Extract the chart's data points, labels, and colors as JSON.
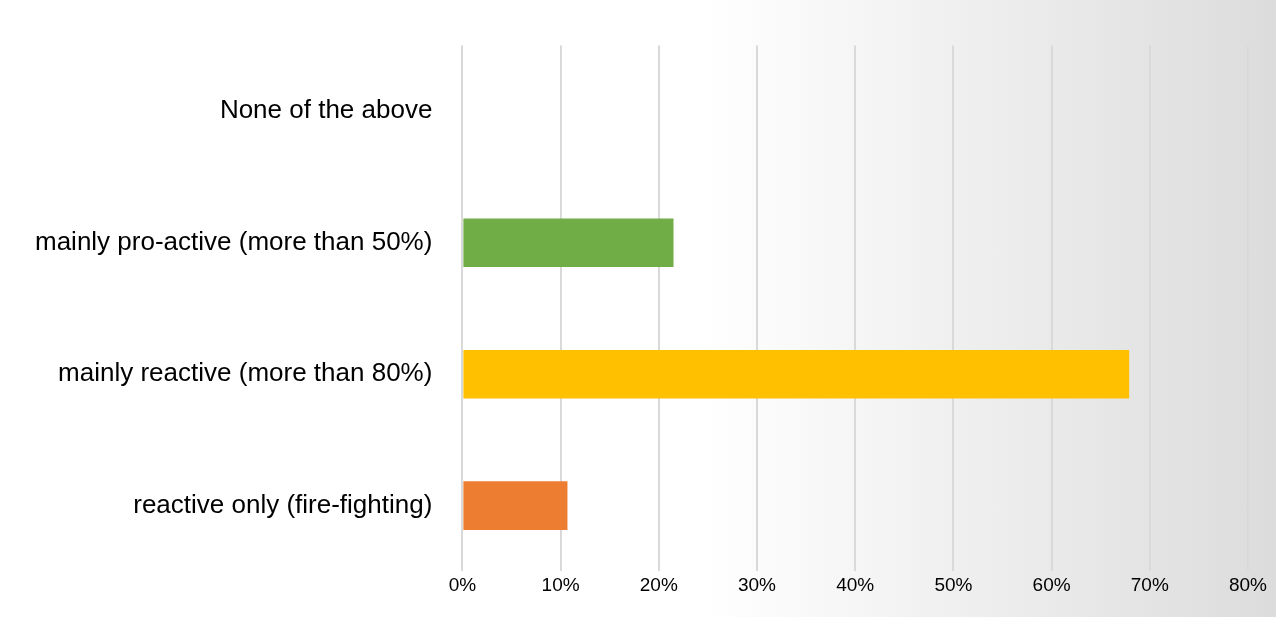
{
  "chart_data": {
    "type": "bar",
    "orientation": "horizontal",
    "categories": [
      "None of the above",
      "mainly pro-active (more than 50%)",
      "mainly reactive (more than 80%)",
      "reactive only (fire-fighting)"
    ],
    "values": [
      0,
      21.5,
      67.9,
      10.7
    ],
    "colors": [
      "#70ad47",
      "#70ad47",
      "#ffc000",
      "#ed7d31"
    ],
    "xlim": [
      0,
      80
    ],
    "xticks": [
      {
        "value": 0,
        "label": "0%"
      },
      {
        "value": 10,
        "label": "10%"
      },
      {
        "value": 20,
        "label": "20%"
      },
      {
        "value": 30,
        "label": "30%"
      },
      {
        "value": 40,
        "label": "40%"
      },
      {
        "value": 50,
        "label": "50%"
      },
      {
        "value": 60,
        "label": "60%"
      },
      {
        "value": 70,
        "label": "70%"
      },
      {
        "value": 80,
        "label": "80%"
      }
    ],
    "grid": "x",
    "legend": false
  }
}
